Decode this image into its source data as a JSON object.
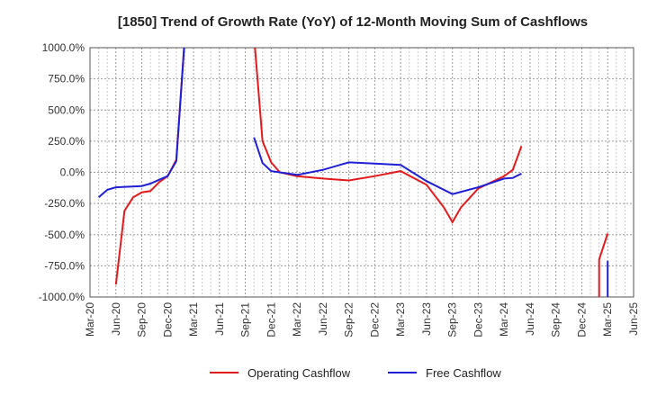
{
  "chart_data": {
    "type": "line",
    "title": "[1850]  Trend of Growth Rate (YoY) of 12-Month Moving Sum of Cashflows",
    "xlabel": "",
    "ylabel": "",
    "ylim": [
      -1000,
      1000
    ],
    "yticks": [
      1000,
      750,
      500,
      250,
      0,
      -250,
      -500,
      -750,
      -1000
    ],
    "ytick_labels": [
      "1000.0%",
      "750.0%",
      "500.0%",
      "250.0%",
      "0.0%",
      "-250.0%",
      "-500.0%",
      "-750.0%",
      "-1000.0%"
    ],
    "xticks": [
      "Mar-20",
      "Jun-20",
      "Sep-20",
      "Dec-20",
      "Mar-21",
      "Jun-21",
      "Sep-21",
      "Dec-21",
      "Mar-22",
      "Jun-22",
      "Sep-22",
      "Dec-22",
      "Mar-23",
      "Jun-23",
      "Sep-23",
      "Dec-23",
      "Mar-24",
      "Jun-24",
      "Sep-24",
      "Dec-24",
      "Mar-25",
      "Jun-25"
    ],
    "grid": true,
    "legend_position": "bottom-center",
    "series": [
      {
        "name": "Operating Cashflow",
        "color": "#e31a1c",
        "points": [
          [
            "Jun-20",
            -900
          ],
          [
            "Jul-20",
            -310
          ],
          [
            "Aug-20",
            -200
          ],
          [
            "Sep-20",
            -160
          ],
          [
            "Oct-20",
            -150
          ],
          [
            "Nov-20",
            -80
          ],
          [
            "Dec-20",
            -30
          ],
          [
            "Jan-21",
            100
          ],
          [
            "Feb-21",
            1100
          ],
          null,
          [
            "Oct-21",
            1100
          ],
          [
            "Nov-21",
            250
          ],
          [
            "Dec-21",
            80
          ],
          [
            "Jan-22",
            0
          ],
          [
            "Mar-22",
            -30
          ],
          [
            "Jun-22",
            -50
          ],
          [
            "Sep-22",
            -65
          ],
          [
            "Dec-22",
            -30
          ],
          [
            "Mar-23",
            10
          ],
          [
            "Jun-23",
            -100
          ],
          [
            "Aug-23",
            -280
          ],
          [
            "Sep-23",
            -400
          ],
          [
            "Oct-23",
            -280
          ],
          [
            "Dec-23",
            -130
          ],
          [
            "Mar-24",
            -30
          ],
          [
            "Apr-24",
            20
          ],
          [
            "May-24",
            210
          ],
          null,
          [
            "Feb-25",
            -1100
          ],
          [
            "Feb-25",
            -700
          ],
          [
            "Mar-25",
            -490
          ]
        ]
      },
      {
        "name": "Free Cashflow",
        "color": "#1f1fd6",
        "points": [
          [
            "Apr-20",
            -200
          ],
          [
            "May-20",
            -140
          ],
          [
            "Jun-20",
            -120
          ],
          [
            "Sep-20",
            -110
          ],
          [
            "Oct-20",
            -90
          ],
          [
            "Nov-20",
            -60
          ],
          [
            "Dec-20",
            -30
          ],
          [
            "Jan-21",
            90
          ],
          [
            "Feb-21",
            1100
          ],
          null,
          [
            "Oct-21",
            280
          ],
          [
            "Nov-21",
            75
          ],
          [
            "Dec-21",
            10
          ],
          [
            "Mar-22",
            -20
          ],
          [
            "Jun-22",
            20
          ],
          [
            "Sep-22",
            80
          ],
          [
            "Dec-22",
            70
          ],
          [
            "Mar-23",
            60
          ],
          [
            "Jun-23",
            -70
          ],
          [
            "Sep-23",
            -175
          ],
          [
            "Dec-23",
            -120
          ],
          [
            "Mar-24",
            -50
          ],
          [
            "Apr-24",
            -45
          ],
          [
            "May-24",
            -10
          ],
          null,
          [
            "Mar-25",
            -1100
          ],
          [
            "Mar-25",
            -710
          ]
        ]
      }
    ]
  }
}
